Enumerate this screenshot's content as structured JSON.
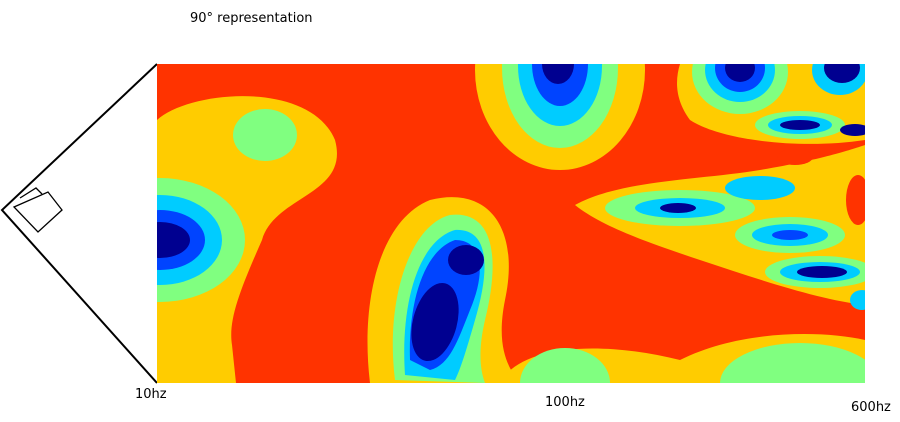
{
  "title": "90° representation",
  "frequency_labels": [
    "10hz",
    "100hz",
    "600hz"
  ]
}
